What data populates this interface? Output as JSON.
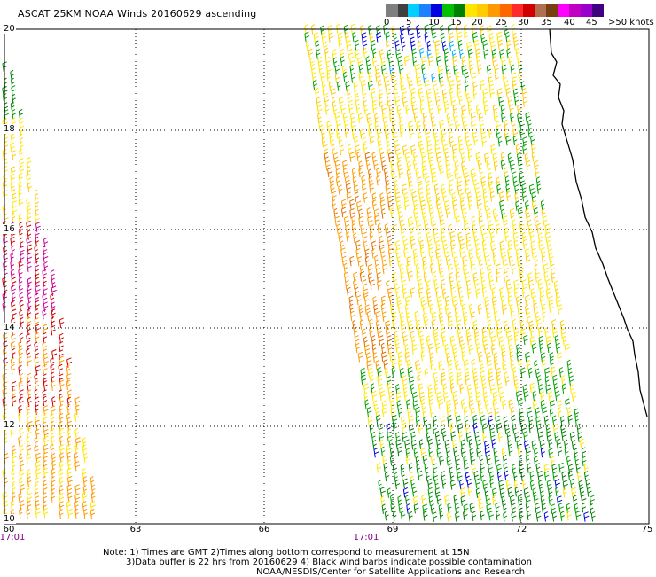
{
  "header": {
    "title": "ASCAT 25KM NOAA Winds 20160629 ascending"
  },
  "legend": {
    "colors": [
      "#7f7f7f",
      "#404040",
      "#00cfff",
      "#1e7fff",
      "#0000e0",
      "#00c000",
      "#008000",
      "#ffe600",
      "#ffcc00",
      "#ff9900",
      "#ff6600",
      "#ff2a2a",
      "#d00000",
      "#b07050",
      "#7a3f10",
      "#ff00ff",
      "#c000c0",
      "#9900cc",
      "#400080"
    ],
    "labels": [
      "0",
      "5",
      "10",
      "15",
      "20",
      "25",
      "30",
      "35",
      "40",
      "45",
      ">50 knots"
    ]
  },
  "map": {
    "lat_labels": [
      "20",
      "18",
      "16",
      "14",
      "12",
      "10"
    ],
    "lon_labels": [
      "60",
      "63",
      "66",
      "69",
      "72",
      "75"
    ],
    "pass_times": [
      "17:01",
      "17:01"
    ],
    "coastline_color": "#000000",
    "grid_color": "#000000"
  },
  "notes": {
    "line1": "Note: 1) Times are GMT 2)Times along bottom correspond to measurement at 15N",
    "line2": "3)Data buffer is 22 hrs from 20160629 4) Black wind barbs indicate possible contamination",
    "line3": "NOAA/NESDIS/Center for Satellite Applications and Research"
  }
}
